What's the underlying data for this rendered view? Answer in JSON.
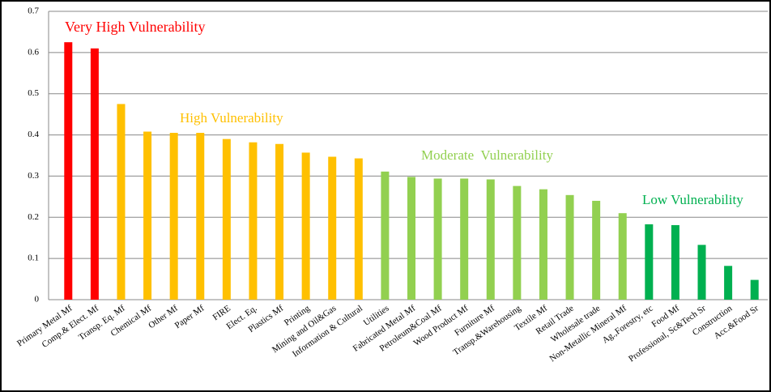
{
  "chart_data": {
    "type": "bar",
    "categories": [
      "Primary Metal Mf",
      "Comp.& Elect. Mf",
      "Transp. Eq. Mf",
      "Chemical Mf",
      "Other Mf",
      "Paper Mf",
      "FIRE",
      "Elect. Eq.",
      "Plastics Mf",
      "Printing",
      "Mining and Oil&Gas",
      "Information & Cultural",
      "Utilities",
      "Fabricated Metal Mf",
      "Petroleum&Coal Mf",
      "Wood Product Mf",
      "Furniture Mf",
      "Transp.&Warehousing",
      "Textile Mf",
      "Retail Trade",
      "Wholesale trade",
      "Non-Metallic Mineral Mf",
      "Ag.,Forestry, etc",
      "Food Mf",
      "Professional, Sc&Tech Sr",
      "Construction",
      "Acc.&Food Sr"
    ],
    "values": [
      0.625,
      0.61,
      0.475,
      0.408,
      0.405,
      0.405,
      0.39,
      0.382,
      0.378,
      0.357,
      0.347,
      0.343,
      0.311,
      0.298,
      0.294,
      0.294,
      0.292,
      0.276,
      0.268,
      0.254,
      0.24,
      0.21,
      0.183,
      0.181,
      0.133,
      0.082,
      0.048
    ],
    "colors": [
      "#ff0000",
      "#ff0000",
      "#ffc000",
      "#ffc000",
      "#ffc000",
      "#ffc000",
      "#ffc000",
      "#ffc000",
      "#ffc000",
      "#ffc000",
      "#ffc000",
      "#ffc000",
      "#92d050",
      "#92d050",
      "#92d050",
      "#92d050",
      "#92d050",
      "#92d050",
      "#92d050",
      "#92d050",
      "#92d050",
      "#92d050",
      "#00b050",
      "#00b050",
      "#00b050",
      "#00b050",
      "#00b050"
    ],
    "annotations": [
      {
        "text": "Very High Vulnerability",
        "color": "#ff0000"
      },
      {
        "text": "High Vulnerability",
        "color": "#ffc000"
      },
      {
        "text": "Moderate  Vulnerability",
        "color": "#92d050"
      },
      {
        "text": "Low Vulnerability",
        "color": "#00b050"
      }
    ],
    "ylim": [
      0,
      0.7
    ],
    "yticks": [
      0,
      0.1,
      0.2,
      0.3,
      0.4,
      0.5,
      0.6,
      0.7
    ],
    "grid": true
  }
}
